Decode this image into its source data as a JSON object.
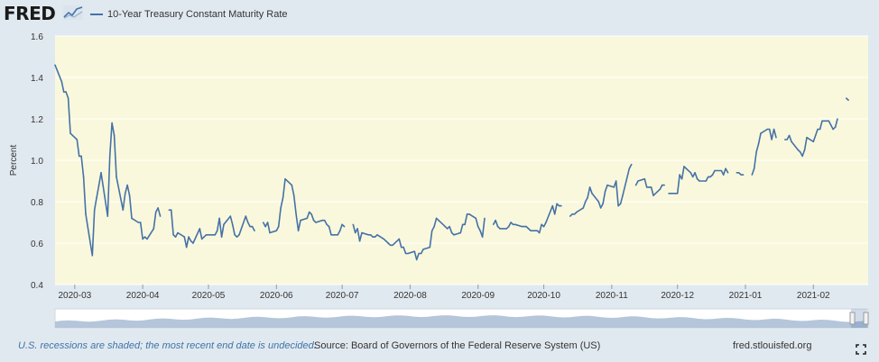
{
  "brand": "FRED",
  "legend": {
    "label": "10-Year Treasury Constant Maturity Rate"
  },
  "footer": {
    "recession_note": "U.S. recessions are shaded; the most recent end date is undecided.",
    "source": "Source: Board of Governors of the Federal Reserve System (US)",
    "url": "fred.stlouisfed.org"
  },
  "colors": {
    "plot_background": "#faf8dc",
    "line": "#4572a7",
    "gridline": "#ffffff",
    "navigator_fill": "#a8bcd3",
    "note_text": "#3f73a8"
  },
  "icons": [
    "fred-logo-chart-icon",
    "fullscreen-icon"
  ],
  "chart_data": {
    "type": "line",
    "title": "",
    "series_name": "10-Year Treasury Constant Maturity Rate",
    "xlabel": "",
    "ylabel": "Percent",
    "ylim": [
      0.4,
      1.6
    ],
    "yticks": [
      0.4,
      0.6,
      0.8,
      1.0,
      1.2,
      1.4,
      1.6
    ],
    "xlim": [
      "2020-02-21",
      "2021-02-26"
    ],
    "xticks": [
      "2020-03",
      "2020-04",
      "2020-05",
      "2020-06",
      "2020-07",
      "2020-08",
      "2020-09",
      "2020-10",
      "2020-11",
      "2020-12",
      "2021-01",
      "2021-02"
    ],
    "grid": true,
    "legend_position": "top-left",
    "points": [
      [
        "2020-02-21",
        1.46
      ],
      [
        "2020-02-24",
        1.38
      ],
      [
        "2020-02-25",
        1.33
      ],
      [
        "2020-02-26",
        1.33
      ],
      [
        "2020-02-27",
        1.3
      ],
      [
        "2020-02-28",
        1.13
      ],
      [
        "2020-03-02",
        1.1
      ],
      [
        "2020-03-03",
        1.02
      ],
      [
        "2020-03-04",
        1.02
      ],
      [
        "2020-03-05",
        0.92
      ],
      [
        "2020-03-06",
        0.74
      ],
      [
        "2020-03-09",
        0.54
      ],
      [
        "2020-03-10",
        0.76
      ],
      [
        "2020-03-11",
        0.82
      ],
      [
        "2020-03-12",
        0.88
      ],
      [
        "2020-03-13",
        0.94
      ],
      [
        "2020-03-16",
        0.73
      ],
      [
        "2020-03-17",
        1.02
      ],
      [
        "2020-03-18",
        1.18
      ],
      [
        "2020-03-19",
        1.12
      ],
      [
        "2020-03-20",
        0.92
      ],
      [
        "2020-03-23",
        0.76
      ],
      [
        "2020-03-24",
        0.84
      ],
      [
        "2020-03-25",
        0.88
      ],
      [
        "2020-03-26",
        0.83
      ],
      [
        "2020-03-27",
        0.72
      ],
      [
        "2020-03-30",
        0.7
      ],
      [
        "2020-03-31",
        0.7
      ],
      [
        "2020-04-01",
        0.62
      ],
      [
        "2020-04-02",
        0.63
      ],
      [
        "2020-04-03",
        0.62
      ],
      [
        "2020-04-06",
        0.67
      ],
      [
        "2020-04-07",
        0.75
      ],
      [
        "2020-04-08",
        0.77
      ],
      [
        "2020-04-09",
        0.73
      ],
      [
        "2020-04-10",
        null
      ],
      [
        "2020-04-13",
        0.76
      ],
      [
        "2020-04-14",
        0.76
      ],
      [
        "2020-04-15",
        0.64
      ],
      [
        "2020-04-16",
        0.63
      ],
      [
        "2020-04-17",
        0.65
      ],
      [
        "2020-04-20",
        0.63
      ],
      [
        "2020-04-21",
        0.58
      ],
      [
        "2020-04-22",
        0.63
      ],
      [
        "2020-04-23",
        0.61
      ],
      [
        "2020-04-24",
        0.6
      ],
      [
        "2020-04-27",
        0.67
      ],
      [
        "2020-04-28",
        0.62
      ],
      [
        "2020-04-29",
        0.63
      ],
      [
        "2020-04-30",
        0.64
      ],
      [
        "2020-05-01",
        0.64
      ],
      [
        "2020-05-04",
        0.64
      ],
      [
        "2020-05-05",
        0.66
      ],
      [
        "2020-05-06",
        0.72
      ],
      [
        "2020-05-07",
        0.63
      ],
      [
        "2020-05-08",
        0.69
      ],
      [
        "2020-05-11",
        0.73
      ],
      [
        "2020-05-12",
        0.69
      ],
      [
        "2020-05-13",
        0.64
      ],
      [
        "2020-05-14",
        0.63
      ],
      [
        "2020-05-15",
        0.64
      ],
      [
        "2020-05-18",
        0.73
      ],
      [
        "2020-05-19",
        0.7
      ],
      [
        "2020-05-20",
        0.68
      ],
      [
        "2020-05-21",
        0.68
      ],
      [
        "2020-05-22",
        0.66
      ],
      [
        "2020-05-25",
        null
      ],
      [
        "2020-05-26",
        0.7
      ],
      [
        "2020-05-27",
        0.68
      ],
      [
        "2020-05-28",
        0.7
      ],
      [
        "2020-05-29",
        0.65
      ],
      [
        "2020-06-01",
        0.66
      ],
      [
        "2020-06-02",
        0.68
      ],
      [
        "2020-06-03",
        0.77
      ],
      [
        "2020-06-04",
        0.82
      ],
      [
        "2020-06-05",
        0.91
      ],
      [
        "2020-06-08",
        0.88
      ],
      [
        "2020-06-09",
        0.83
      ],
      [
        "2020-06-10",
        0.74
      ],
      [
        "2020-06-11",
        0.66
      ],
      [
        "2020-06-12",
        0.71
      ],
      [
        "2020-06-15",
        0.72
      ],
      [
        "2020-06-16",
        0.75
      ],
      [
        "2020-06-17",
        0.74
      ],
      [
        "2020-06-18",
        0.71
      ],
      [
        "2020-06-19",
        0.7
      ],
      [
        "2020-06-22",
        0.71
      ],
      [
        "2020-06-23",
        0.71
      ],
      [
        "2020-06-24",
        0.69
      ],
      [
        "2020-06-25",
        0.68
      ],
      [
        "2020-06-26",
        0.64
      ],
      [
        "2020-06-29",
        0.64
      ],
      [
        "2020-06-30",
        0.66
      ],
      [
        "2020-07-01",
        0.69
      ],
      [
        "2020-07-02",
        0.68
      ],
      [
        "2020-07-03",
        null
      ],
      [
        "2020-07-06",
        0.69
      ],
      [
        "2020-07-07",
        0.65
      ],
      [
        "2020-07-08",
        0.67
      ],
      [
        "2020-07-09",
        0.61
      ],
      [
        "2020-07-10",
        0.65
      ],
      [
        "2020-07-13",
        0.64
      ],
      [
        "2020-07-14",
        0.64
      ],
      [
        "2020-07-15",
        0.63
      ],
      [
        "2020-07-16",
        0.63
      ],
      [
        "2020-07-17",
        0.64
      ],
      [
        "2020-07-20",
        0.62
      ],
      [
        "2020-07-21",
        0.61
      ],
      [
        "2020-07-22",
        0.6
      ],
      [
        "2020-07-23",
        0.59
      ],
      [
        "2020-07-24",
        0.59
      ],
      [
        "2020-07-27",
        0.62
      ],
      [
        "2020-07-28",
        0.58
      ],
      [
        "2020-07-29",
        0.58
      ],
      [
        "2020-07-30",
        0.55
      ],
      [
        "2020-07-31",
        0.55
      ],
      [
        "2020-08-03",
        0.56
      ],
      [
        "2020-08-04",
        0.52
      ],
      [
        "2020-08-05",
        0.55
      ],
      [
        "2020-08-06",
        0.55
      ],
      [
        "2020-08-07",
        0.57
      ],
      [
        "2020-08-10",
        0.58
      ],
      [
        "2020-08-11",
        0.66
      ],
      [
        "2020-08-12",
        0.68
      ],
      [
        "2020-08-13",
        0.72
      ],
      [
        "2020-08-14",
        0.71
      ],
      [
        "2020-08-17",
        0.68
      ],
      [
        "2020-08-18",
        0.67
      ],
      [
        "2020-08-19",
        0.68
      ],
      [
        "2020-08-20",
        0.65
      ],
      [
        "2020-08-21",
        0.64
      ],
      [
        "2020-08-24",
        0.65
      ],
      [
        "2020-08-25",
        0.69
      ],
      [
        "2020-08-26",
        0.69
      ],
      [
        "2020-08-27",
        0.74
      ],
      [
        "2020-08-28",
        0.74
      ],
      [
        "2020-08-31",
        0.72
      ],
      [
        "2020-09-01",
        0.68
      ],
      [
        "2020-09-02",
        0.66
      ],
      [
        "2020-09-03",
        0.63
      ],
      [
        "2020-09-04",
        0.72
      ],
      [
        "2020-09-07",
        null
      ],
      [
        "2020-09-08",
        0.69
      ],
      [
        "2020-09-09",
        0.71
      ],
      [
        "2020-09-10",
        0.68
      ],
      [
        "2020-09-11",
        0.67
      ],
      [
        "2020-09-14",
        0.67
      ],
      [
        "2020-09-15",
        0.68
      ],
      [
        "2020-09-16",
        0.7
      ],
      [
        "2020-09-17",
        0.69
      ],
      [
        "2020-09-18",
        0.69
      ],
      [
        "2020-09-21",
        0.68
      ],
      [
        "2020-09-22",
        0.68
      ],
      [
        "2020-09-23",
        0.68
      ],
      [
        "2020-09-24",
        0.67
      ],
      [
        "2020-09-25",
        0.66
      ],
      [
        "2020-09-28",
        0.66
      ],
      [
        "2020-09-29",
        0.65
      ],
      [
        "2020-09-30",
        0.69
      ],
      [
        "2020-10-01",
        0.68
      ],
      [
        "2020-10-02",
        0.7
      ],
      [
        "2020-10-05",
        0.78
      ],
      [
        "2020-10-06",
        0.74
      ],
      [
        "2020-10-07",
        0.79
      ],
      [
        "2020-10-08",
        0.78
      ],
      [
        "2020-10-09",
        0.78
      ],
      [
        "2020-10-12",
        null
      ],
      [
        "2020-10-13",
        0.73
      ],
      [
        "2020-10-14",
        0.74
      ],
      [
        "2020-10-15",
        0.74
      ],
      [
        "2020-10-16",
        0.75
      ],
      [
        "2020-10-19",
        0.77
      ],
      [
        "2020-10-20",
        0.8
      ],
      [
        "2020-10-21",
        0.82
      ],
      [
        "2020-10-22",
        0.87
      ],
      [
        "2020-10-23",
        0.84
      ],
      [
        "2020-10-26",
        0.8
      ],
      [
        "2020-10-27",
        0.77
      ],
      [
        "2020-10-28",
        0.79
      ],
      [
        "2020-10-29",
        0.85
      ],
      [
        "2020-10-30",
        0.88
      ],
      [
        "2020-11-02",
        0.87
      ],
      [
        "2020-11-03",
        0.9
      ],
      [
        "2020-11-04",
        0.78
      ],
      [
        "2020-11-05",
        0.79
      ],
      [
        "2020-11-06",
        0.83
      ],
      [
        "2020-11-09",
        0.96
      ],
      [
        "2020-11-10",
        0.98
      ],
      [
        "2020-11-11",
        null
      ],
      [
        "2020-11-12",
        0.88
      ],
      [
        "2020-11-13",
        0.9
      ],
      [
        "2020-11-16",
        0.91
      ],
      [
        "2020-11-17",
        0.87
      ],
      [
        "2020-11-18",
        0.87
      ],
      [
        "2020-11-19",
        0.87
      ],
      [
        "2020-11-20",
        0.83
      ],
      [
        "2020-11-23",
        0.86
      ],
      [
        "2020-11-24",
        0.88
      ],
      [
        "2020-11-25",
        0.88
      ],
      [
        "2020-11-26",
        null
      ],
      [
        "2020-11-27",
        0.84
      ],
      [
        "2020-11-30",
        0.84
      ],
      [
        "2020-12-01",
        0.84
      ],
      [
        "2020-12-02",
        0.93
      ],
      [
        "2020-12-03",
        0.91
      ],
      [
        "2020-12-04",
        0.97
      ],
      [
        "2020-12-07",
        0.94
      ],
      [
        "2020-12-08",
        0.92
      ],
      [
        "2020-12-09",
        0.94
      ],
      [
        "2020-12-10",
        0.91
      ],
      [
        "2020-12-11",
        0.9
      ],
      [
        "2020-12-14",
        0.9
      ],
      [
        "2020-12-15",
        0.92
      ],
      [
        "2020-12-16",
        0.92
      ],
      [
        "2020-12-17",
        0.93
      ],
      [
        "2020-12-18",
        0.95
      ],
      [
        "2020-12-21",
        0.95
      ],
      [
        "2020-12-22",
        0.93
      ],
      [
        "2020-12-23",
        0.96
      ],
      [
        "2020-12-24",
        0.94
      ],
      [
        "2020-12-25",
        null
      ],
      [
        "2020-12-28",
        0.94
      ],
      [
        "2020-12-29",
        0.94
      ],
      [
        "2020-12-30",
        0.93
      ],
      [
        "2020-12-31",
        0.93
      ],
      [
        "2021-01-01",
        null
      ],
      [
        "2021-01-04",
        0.93
      ],
      [
        "2021-01-05",
        0.96
      ],
      [
        "2021-01-06",
        1.04
      ],
      [
        "2021-01-07",
        1.08
      ],
      [
        "2021-01-08",
        1.13
      ],
      [
        "2021-01-11",
        1.15
      ],
      [
        "2021-01-12",
        1.15
      ],
      [
        "2021-01-13",
        1.1
      ],
      [
        "2021-01-14",
        1.15
      ],
      [
        "2021-01-15",
        1.11
      ],
      [
        "2021-01-18",
        null
      ],
      [
        "2021-01-19",
        1.1
      ],
      [
        "2021-01-20",
        1.1
      ],
      [
        "2021-01-21",
        1.12
      ],
      [
        "2021-01-22",
        1.09
      ],
      [
        "2021-01-25",
        1.05
      ],
      [
        "2021-01-26",
        1.04
      ],
      [
        "2021-01-27",
        1.02
      ],
      [
        "2021-01-28",
        1.05
      ],
      [
        "2021-01-29",
        1.11
      ],
      [
        "2021-02-01",
        1.09
      ],
      [
        "2021-02-02",
        1.12
      ],
      [
        "2021-02-03",
        1.15
      ],
      [
        "2021-02-04",
        1.15
      ],
      [
        "2021-02-05",
        1.19
      ],
      [
        "2021-02-08",
        1.19
      ],
      [
        "2021-02-09",
        1.17
      ],
      [
        "2021-02-10",
        1.15
      ],
      [
        "2021-02-11",
        1.16
      ],
      [
        "2021-02-12",
        1.2
      ],
      [
        "2021-02-15",
        null
      ],
      [
        "2021-02-16",
        1.3
      ],
      [
        "2021-02-17",
        1.29
      ]
    ]
  }
}
